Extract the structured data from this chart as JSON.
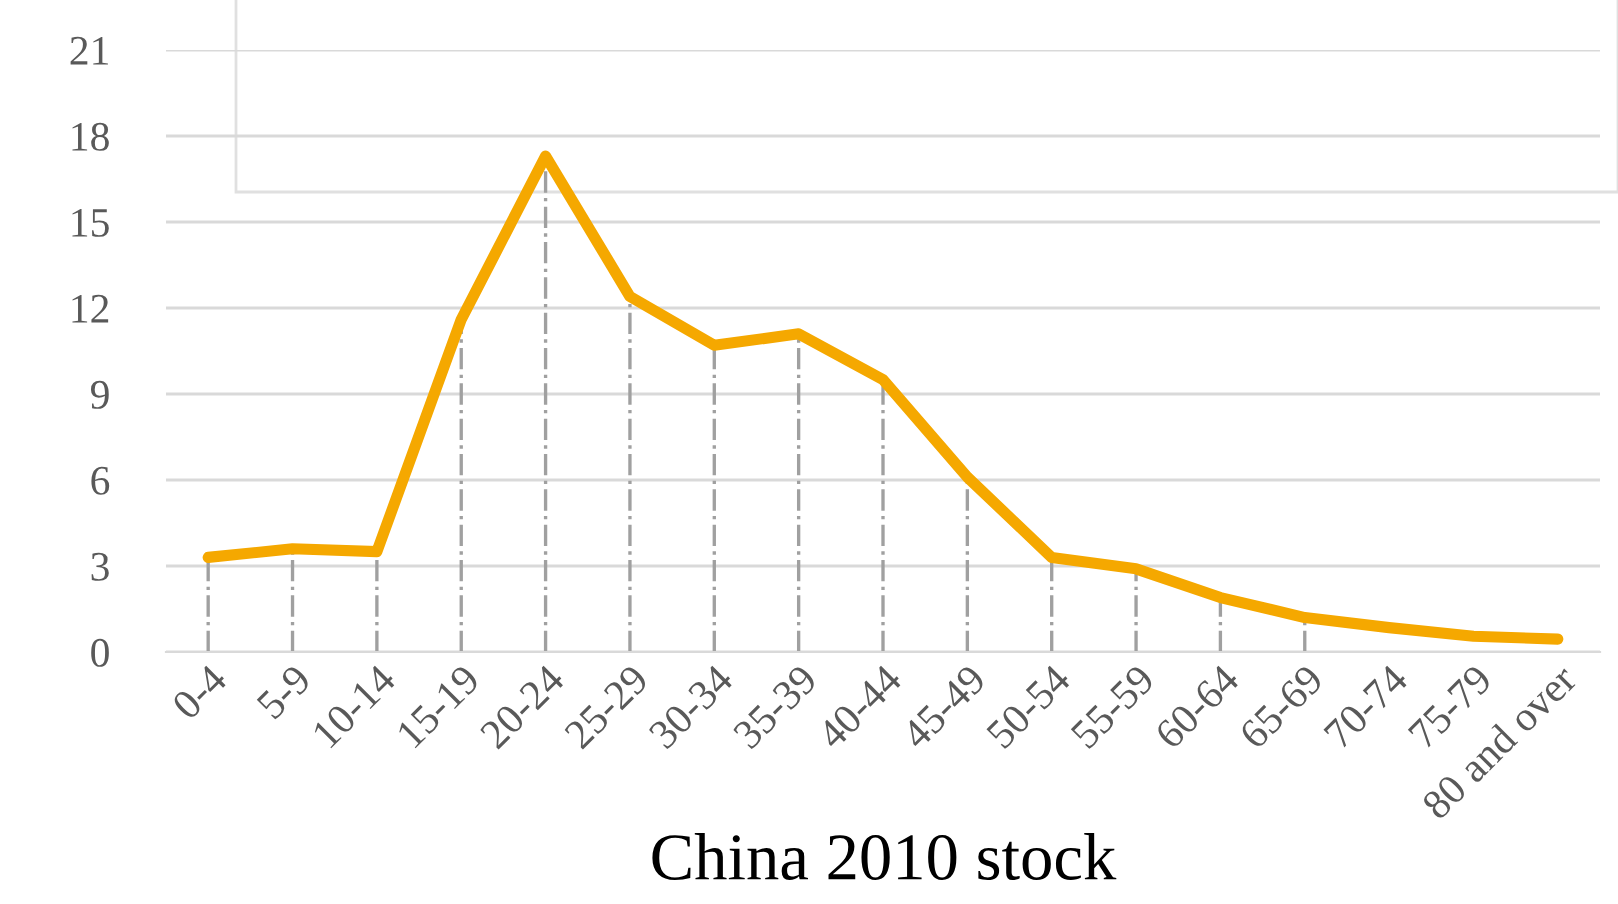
{
  "chart_data": {
    "type": "line",
    "xlabel": "China 2010 stock",
    "categories": [
      "0-4",
      "5-9",
      "10-14",
      "15-19",
      "20-24",
      "25-29",
      "30-34",
      "35-39",
      "40-44",
      "45-49",
      "50-54",
      "55-59",
      "60-64",
      "65-69",
      "70-74",
      "75-79",
      "80 and over"
    ],
    "series": [
      {
        "color": "#f5a800",
        "values": [
          3.3,
          3.6,
          3.5,
          11.6,
          17.3,
          12.4,
          10.7,
          11.1,
          9.5,
          6.1,
          3.3,
          2.9,
          1.9,
          1.2,
          0.85,
          0.55,
          0.45
        ],
        "errors": [
          [
            0,
            3.3
          ],
          [
            0,
            3.6
          ],
          [
            0,
            3.5
          ],
          [
            0,
            11.6
          ],
          [
            0,
            17.3
          ],
          [
            0,
            12.4
          ],
          [
            0,
            10.7
          ],
          [
            0,
            11.1
          ],
          [
            0,
            9.5
          ],
          [
            0,
            6.1
          ],
          [
            0,
            3.3
          ],
          [
            0,
            2.9
          ],
          [
            0,
            1.9
          ],
          [
            0,
            1.2
          ],
          null,
          null,
          null
        ]
      }
    ],
    "ylim": [
      0,
      21
    ],
    "yticks": [
      0,
      3,
      6,
      9,
      12,
      15,
      18,
      21
    ],
    "grid": "y",
    "marker": "none",
    "line_style": "solid"
  }
}
